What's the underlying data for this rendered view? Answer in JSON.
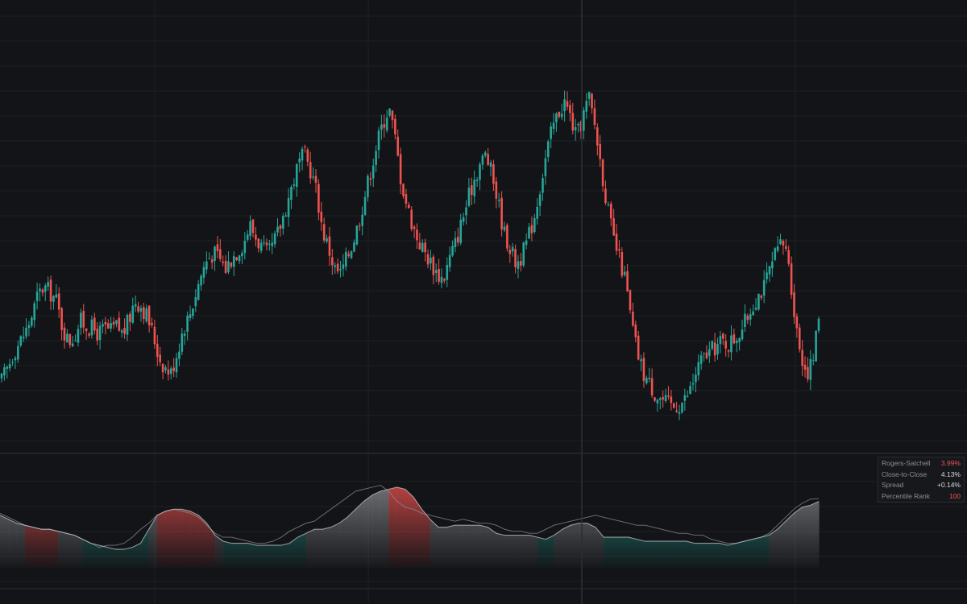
{
  "colors": {
    "background": "#131417",
    "grid": "#1f2024",
    "up": "#26a69a",
    "down": "#ef5350",
    "panel_border": "#2a2c31",
    "secondary_line": "#8a8d94"
  },
  "stats_panel": {
    "rows": [
      {
        "label": "Rogers-Satchell",
        "value": "3.99%",
        "color": "#ef5350"
      },
      {
        "label": "Close-to-Close",
        "value": "4.13%",
        "color": "#d7d9de"
      },
      {
        "label": "Spread",
        "value": "+0.14%",
        "color": "#d7d9de"
      },
      {
        "label": "Percentile Rank",
        "value": "100",
        "color": "#ef5350"
      }
    ]
  },
  "chart_data": [
    {
      "type": "candlestick",
      "title": "",
      "xlabel": "",
      "ylabel": "",
      "grid": true,
      "axis_labels_visible": false,
      "close_path_approx": [
        37,
        42,
        48,
        52,
        56,
        62,
        70,
        73,
        71,
        68,
        58,
        52,
        54,
        60,
        58,
        57,
        55,
        57,
        56,
        58,
        55,
        60,
        68,
        66,
        62,
        55,
        46,
        42,
        40,
        48,
        57,
        62,
        70,
        78,
        84,
        86,
        84,
        80,
        84,
        87,
        90,
        97,
        92,
        88,
        85,
        90,
        96,
        104,
        112,
        120,
        124,
        118,
        110,
        95,
        88,
        80,
        78,
        84,
        90,
        98,
        108,
        118,
        128,
        136,
        142,
        130,
        114,
        104,
        96,
        90,
        86,
        82,
        78,
        76,
        84,
        90,
        98,
        106,
        114,
        120,
        124,
        116,
        106,
        94,
        88,
        82,
        85,
        92,
        100,
        112,
        124,
        134,
        140,
        144,
        138,
        130,
        138,
        146,
        135,
        120,
        105,
        92,
        84,
        76,
        60,
        48,
        40,
        36,
        32,
        30,
        28,
        27,
        28,
        30,
        35,
        42,
        46,
        48,
        50,
        52,
        51,
        53,
        56,
        60,
        66,
        70,
        73,
        80,
        86,
        90,
        84,
        62,
        48,
        40,
        44,
        62
      ],
      "long_term_trend": "rise, plateau, sharp fall, rebound"
    },
    {
      "type": "area",
      "title": "",
      "series": [
        {
          "name": "Rogers-Satchell",
          "values": [
            3.3,
            3.1,
            2.9,
            2.8,
            2.7,
            2.6,
            2.6,
            2.5,
            2.4,
            2.3,
            2.1,
            1.9,
            1.8,
            1.7,
            1.6,
            1.6,
            1.7,
            1.9,
            2.6,
            3.3,
            3.5,
            3.6,
            3.6,
            3.5,
            3.3,
            2.9,
            2.3,
            2.0,
            1.9,
            1.9,
            1.9,
            1.8,
            1.8,
            1.8,
            1.8,
            1.9,
            2.2,
            2.4,
            2.6,
            2.6,
            2.7,
            2.9,
            3.2,
            3.6,
            4.0,
            4.3,
            4.5,
            4.6,
            4.7,
            4.6,
            4.2,
            3.6,
            3.1,
            2.7,
            2.7,
            2.8,
            2.8,
            2.8,
            2.8,
            2.7,
            2.4,
            2.3,
            2.3,
            2.3,
            2.3,
            2.2,
            2.1,
            2.3,
            2.6,
            2.8,
            2.9,
            2.9,
            2.7,
            2.2,
            2.2,
            2.2,
            2.2,
            2.1,
            2.0,
            2.0,
            2.0,
            2.0,
            2.0,
            2.0,
            1.9,
            1.9,
            1.9,
            1.9,
            1.8,
            1.9,
            2.0,
            2.1,
            2.2,
            2.3,
            2.6,
            3.0,
            3.4,
            3.7,
            3.8,
            3.99
          ]
        },
        {
          "name": "Close-to-Close",
          "values": [
            3.4,
            3.2,
            3.0,
            2.8,
            2.7,
            2.6,
            2.6,
            2.5,
            2.4,
            2.3,
            2.1,
            1.9,
            1.7,
            1.8,
            1.8,
            1.9,
            2.2,
            2.6,
            2.9,
            3.3,
            3.5,
            3.6,
            3.5,
            3.4,
            3.2,
            2.8,
            2.4,
            2.2,
            2.2,
            2.1,
            2.0,
            1.9,
            1.9,
            2.0,
            2.2,
            2.5,
            2.7,
            2.9,
            3.0,
            3.3,
            3.6,
            3.9,
            4.2,
            4.5,
            4.6,
            4.7,
            4.8,
            4.5,
            4.0,
            3.7,
            3.6,
            3.4,
            3.3,
            3.2,
            3.1,
            3.0,
            3.1,
            3.0,
            2.9,
            2.9,
            2.8,
            2.6,
            2.5,
            2.5,
            2.4,
            2.4,
            2.6,
            2.8,
            2.9,
            3.0,
            3.1,
            3.2,
            3.3,
            3.2,
            3.1,
            3.0,
            2.9,
            2.8,
            2.8,
            2.7,
            2.6,
            2.5,
            2.4,
            2.4,
            2.3,
            2.3,
            2.1,
            2.0,
            1.9,
            1.9,
            2.0,
            2.1,
            2.2,
            2.4,
            2.8,
            3.2,
            3.6,
            3.9,
            4.1,
            4.13
          ]
        }
      ]
    }
  ]
}
